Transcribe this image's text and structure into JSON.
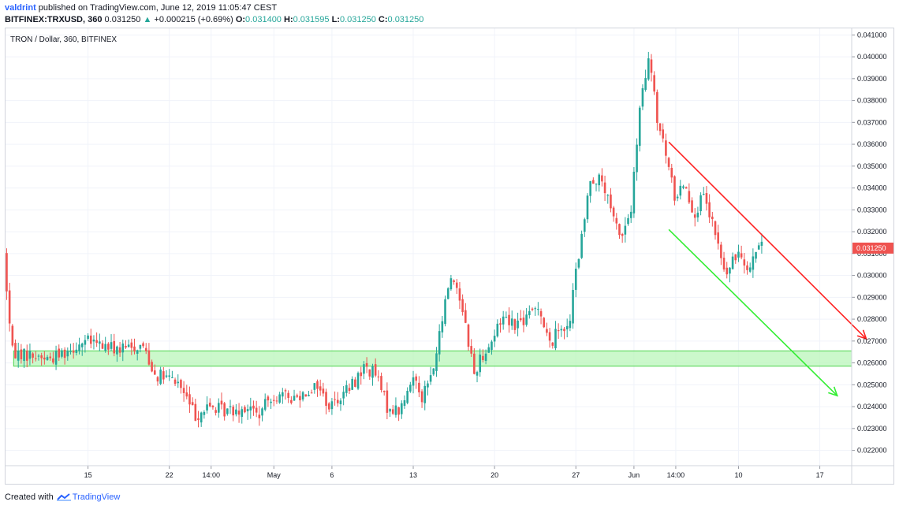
{
  "header": {
    "author": "valdrint",
    "published": " published on TradingView.com, June 12, 2019 11:05:47 CEST",
    "symbol": "BITFINEX:TRXUSD, 360",
    "last": "0.031250",
    "arrow": "▲",
    "change": "+0.000215 (+0.69%)",
    "o_label": "O:",
    "o_value": "0.031400",
    "h_label": "H:",
    "h_value": "0.031595",
    "l_label": "L:",
    "l_value": "0.031250",
    "c_label": "C:",
    "c_value": "0.031250"
  },
  "legend": "TRON / Dollar, 360, BITFINEX",
  "footer": {
    "created": "Created with",
    "brand": "TradingView"
  },
  "colors": {
    "up": "#26a69a",
    "down": "#ef5350",
    "zone_fill": "#b9f6b9",
    "zone_border": "#4cd44c",
    "resistance_line": "#ff2020",
    "support_line": "#33ee33",
    "price_tag": "#ef5350"
  },
  "chart_data": {
    "type": "candlestick",
    "ylim": [
      0.0213,
      0.0413
    ],
    "y_ticks": [
      "0.022000",
      "0.023000",
      "0.024000",
      "0.025000",
      "0.026000",
      "0.027000",
      "0.028000",
      "0.029000",
      "0.030000",
      "0.031000",
      "0.032000",
      "0.033000",
      "0.034000",
      "0.035000",
      "0.036000",
      "0.037000",
      "0.038000",
      "0.039000",
      "0.040000",
      "0.041000"
    ],
    "x_ticks": [
      {
        "label": "15",
        "day": 15
      },
      {
        "label": "22",
        "day": 22
      },
      {
        "label": "14:00",
        "day": 25.6
      },
      {
        "label": "May",
        "day": 31
      },
      {
        "label": "6",
        "day": 36
      },
      {
        "label": "13",
        "day": 43
      },
      {
        "label": "20",
        "day": 50
      },
      {
        "label": "27",
        "day": 57
      },
      {
        "label": "Jun",
        "day": 62
      },
      {
        "label": "14:00",
        "day": 65.6
      },
      {
        "label": "10",
        "day": 71
      },
      {
        "label": "17",
        "day": 78
      }
    ],
    "last_price": "0.031250",
    "last_price_value": 0.03125,
    "support_zone": [
      0.02585,
      0.02655
    ],
    "channel_upper": [
      {
        "day": 65.0,
        "price": 0.0361
      },
      {
        "day": 82.0,
        "price": 0.0271
      }
    ],
    "channel_lower": [
      {
        "day": 65.0,
        "price": 0.0321
      },
      {
        "day": 79.5,
        "price": 0.0245
      }
    ],
    "anchors": [
      {
        "day": 8.0,
        "price": 0.031
      },
      {
        "day": 8.7,
        "price": 0.0265
      },
      {
        "day": 12.0,
        "price": 0.0262
      },
      {
        "day": 15.0,
        "price": 0.027
      },
      {
        "day": 18.0,
        "price": 0.0266
      },
      {
        "day": 20.0,
        "price": 0.0268
      },
      {
        "day": 21.0,
        "price": 0.0255
      },
      {
        "day": 23.0,
        "price": 0.0251
      },
      {
        "day": 24.5,
        "price": 0.0236
      },
      {
        "day": 25.7,
        "price": 0.024
      },
      {
        "day": 27.0,
        "price": 0.0238
      },
      {
        "day": 29.0,
        "price": 0.024
      },
      {
        "day": 30.0,
        "price": 0.0236
      },
      {
        "day": 31.0,
        "price": 0.0245
      },
      {
        "day": 33.0,
        "price": 0.0244
      },
      {
        "day": 35.0,
        "price": 0.025
      },
      {
        "day": 36.0,
        "price": 0.024
      },
      {
        "day": 38.0,
        "price": 0.025
      },
      {
        "day": 39.0,
        "price": 0.0258
      },
      {
        "day": 40.0,
        "price": 0.0255
      },
      {
        "day": 41.0,
        "price": 0.024
      },
      {
        "day": 42.0,
        "price": 0.0238
      },
      {
        "day": 42.7,
        "price": 0.0245
      },
      {
        "day": 43.3,
        "price": 0.0255
      },
      {
        "day": 44.0,
        "price": 0.0245
      },
      {
        "day": 44.9,
        "price": 0.0255
      },
      {
        "day": 45.5,
        "price": 0.0272
      },
      {
        "day": 46.4,
        "price": 0.03
      },
      {
        "day": 47.0,
        "price": 0.0295
      },
      {
        "day": 47.5,
        "price": 0.0285
      },
      {
        "day": 48.5,
        "price": 0.0255
      },
      {
        "day": 49.0,
        "price": 0.0262
      },
      {
        "day": 50.0,
        "price": 0.027
      },
      {
        "day": 51.0,
        "price": 0.0282
      },
      {
        "day": 52.0,
        "price": 0.0278
      },
      {
        "day": 53.0,
        "price": 0.028
      },
      {
        "day": 54.0,
        "price": 0.0287
      },
      {
        "day": 55.0,
        "price": 0.0268
      },
      {
        "day": 56.0,
        "price": 0.0278
      },
      {
        "day": 56.6,
        "price": 0.0274
      },
      {
        "day": 57.2,
        "price": 0.03
      },
      {
        "day": 57.8,
        "price": 0.0318
      },
      {
        "day": 58.5,
        "price": 0.0345
      },
      {
        "day": 59.5,
        "price": 0.0343
      },
      {
        "day": 60.5,
        "price": 0.0325
      },
      {
        "day": 61.2,
        "price": 0.0318
      },
      {
        "day": 62.0,
        "price": 0.033
      },
      {
        "day": 62.8,
        "price": 0.0378
      },
      {
        "day": 63.6,
        "price": 0.04
      },
      {
        "day": 64.2,
        "price": 0.0372
      },
      {
        "day": 65.0,
        "price": 0.0355
      },
      {
        "day": 65.8,
        "price": 0.0335
      },
      {
        "day": 66.5,
        "price": 0.0343
      },
      {
        "day": 67.5,
        "price": 0.0328
      },
      {
        "day": 68.2,
        "price": 0.0336
      },
      {
        "day": 69.2,
        "price": 0.032
      },
      {
        "day": 70.1,
        "price": 0.03
      },
      {
        "day": 70.6,
        "price": 0.0304
      },
      {
        "day": 71.3,
        "price": 0.0312
      },
      {
        "day": 72.2,
        "price": 0.0303
      },
      {
        "day": 72.9,
        "price": 0.0314
      },
      {
        "day": 73.2,
        "price": 0.03125
      }
    ]
  }
}
